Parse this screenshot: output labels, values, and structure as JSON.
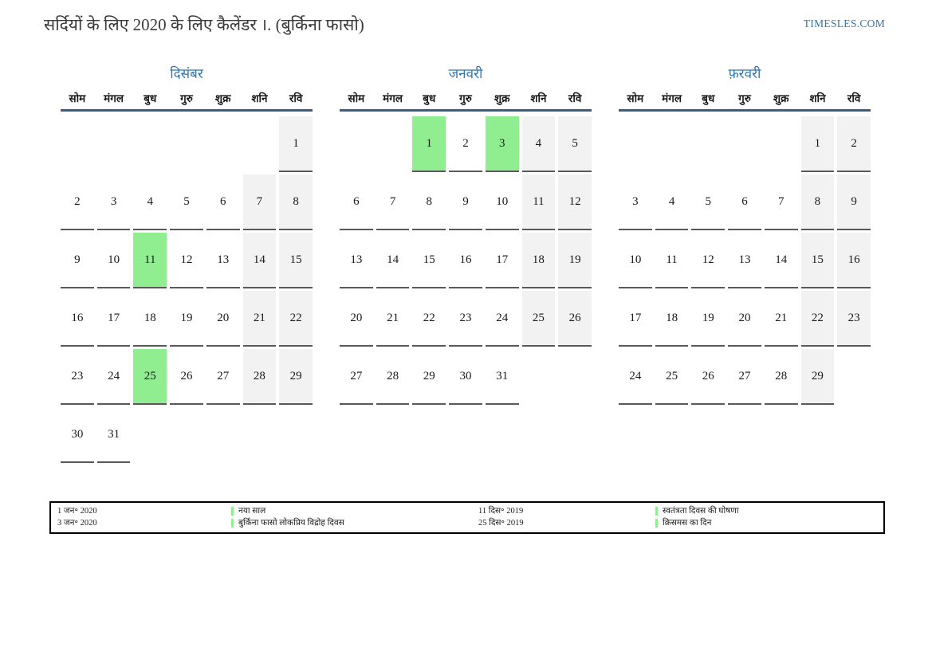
{
  "page": {
    "title": "सर्दियों के लिए 2020 के लिए कैलेंडर ।. (बुर्किना फासो)",
    "site": "TIMESLES.COM"
  },
  "weekdays": [
    "सोम",
    "मंगल",
    "बुध",
    "गुरु",
    "शुक्र",
    "शनि",
    "रवि"
  ],
  "months": [
    {
      "name": "दिसंबर",
      "weeks": [
        [
          "",
          "",
          "",
          "",
          "",
          "",
          1
        ],
        [
          2,
          3,
          4,
          5,
          6,
          7,
          8
        ],
        [
          9,
          10,
          11,
          12,
          13,
          14,
          15
        ],
        [
          16,
          17,
          18,
          19,
          20,
          21,
          22
        ],
        [
          23,
          24,
          25,
          26,
          27,
          28,
          29
        ],
        [
          30,
          31,
          "",
          "",
          "",
          "",
          ""
        ]
      ],
      "highlighted": [
        11,
        25
      ]
    },
    {
      "name": "जनवरी",
      "weeks": [
        [
          "",
          "",
          1,
          2,
          3,
          4,
          5
        ],
        [
          6,
          7,
          8,
          9,
          10,
          11,
          12
        ],
        [
          13,
          14,
          15,
          16,
          17,
          18,
          19
        ],
        [
          20,
          21,
          22,
          23,
          24,
          25,
          26
        ],
        [
          27,
          28,
          29,
          30,
          31,
          "",
          ""
        ],
        [
          "",
          "",
          "",
          "",
          "",
          "",
          ""
        ]
      ],
      "highlighted": [
        1,
        3
      ]
    },
    {
      "name": "फ़रवरी",
      "weeks": [
        [
          "",
          "",
          "",
          "",
          "",
          1,
          2
        ],
        [
          3,
          4,
          5,
          6,
          7,
          8,
          9
        ],
        [
          10,
          11,
          12,
          13,
          14,
          15,
          16
        ],
        [
          17,
          18,
          19,
          20,
          21,
          22,
          23
        ],
        [
          24,
          25,
          26,
          27,
          28,
          29,
          ""
        ],
        [
          "",
          "",
          "",
          "",
          "",
          "",
          ""
        ]
      ],
      "highlighted": []
    }
  ],
  "legend": {
    "entries": [
      {
        "date": "1 जन॰ 2020",
        "name": "नया साल"
      },
      {
        "date": "3 जन॰ 2020",
        "name": "बुर्किना फासो लोकप्रिय विद्रोह दिवस"
      },
      {
        "date": "11 दिस॰ 2019",
        "name": "स्वतंत्रता दिवस की घोषणा"
      },
      {
        "date": "25 दिस॰ 2019",
        "name": "क्रिसमस का दिन"
      }
    ],
    "display_order": [
      0,
      2,
      1,
      3
    ]
  },
  "colors": {
    "accent_blue": "#2E75B5",
    "header_line": "#3D5E80",
    "holiday_green": "#90EE90",
    "weekend_gray": "#F2F2F2",
    "underline_gray": "#595959"
  }
}
